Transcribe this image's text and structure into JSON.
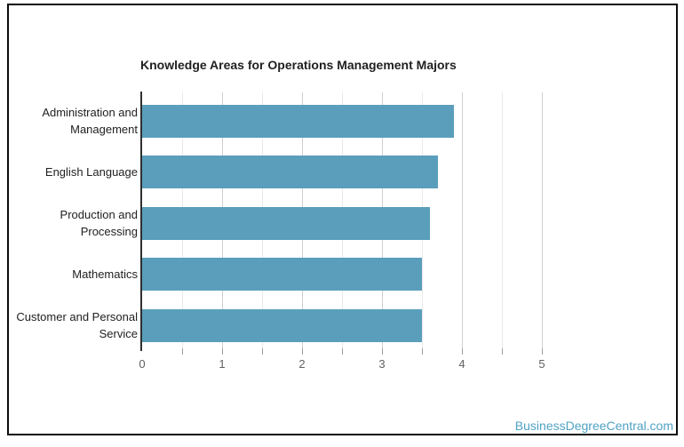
{
  "footer": {
    "text": "BusinessDegreeCentral.com"
  },
  "colors": {
    "bar": "#5A9EBC",
    "link": "#4FA2C4",
    "axis_line": "#2f2f2f",
    "grid_major": "#cfcfcf",
    "grid_minor": "#e9e9e9",
    "tick": "#9e9e9e",
    "title_text": "#212121",
    "category_text": "#212121",
    "axis_label_text": "#616161"
  },
  "chart_data": {
    "type": "bar",
    "orientation": "horizontal",
    "title": "Knowledge Areas for Operations Management Majors",
    "categories": [
      "Administration and Management",
      "English Language",
      "Production and Processing",
      "Mathematics",
      "Customer and Personal Service"
    ],
    "values": [
      3.9,
      3.7,
      3.6,
      3.5,
      3.5
    ],
    "xlabel": "",
    "ylabel": "",
    "xlim": [
      0,
      5
    ],
    "axis": {
      "min": 0,
      "max": 5,
      "minor_step": 0.5,
      "tick_labels": [
        "0",
        "1",
        "2",
        "3",
        "4",
        "5"
      ]
    },
    "grid": true,
    "legend": "none"
  }
}
